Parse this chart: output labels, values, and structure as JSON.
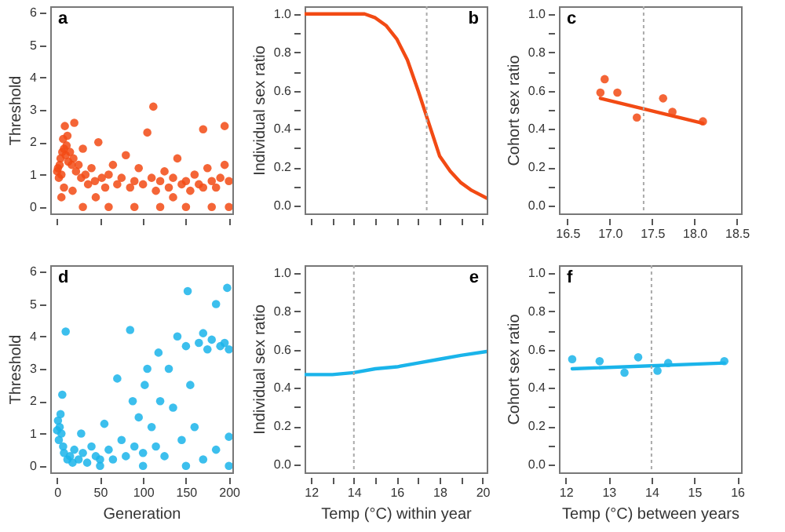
{
  "chart_data": [
    {
      "type": "scatter",
      "annotations": [
        "a"
      ],
      "ylabel": "Threshold",
      "xlim": [
        -8,
        204
      ],
      "ylim": [
        -0.2,
        6.2
      ],
      "xticks": [
        0,
        50,
        100,
        150,
        200
      ],
      "yticks": [
        0,
        1,
        2,
        3,
        4,
        5,
        6
      ],
      "tick_labels": "y",
      "marker": "circle",
      "series": [
        {
          "color": "#f24a14",
          "x": [
            0,
            1,
            2,
            3,
            4,
            5,
            6,
            7,
            8,
            9,
            10,
            11,
            12,
            13,
            15,
            17,
            19,
            20,
            22,
            25,
            28,
            30,
            33,
            36,
            40,
            44,
            48,
            52,
            56,
            60,
            65,
            70,
            75,
            80,
            85,
            90,
            95,
            100,
            105,
            110,
            115,
            120,
            125,
            130,
            135,
            140,
            145,
            150,
            155,
            160,
            165,
            170,
            175,
            180,
            185,
            190,
            195,
            200,
            112,
            170,
            195,
            30,
            60,
            90,
            120,
            150,
            180,
            200,
            45,
            135,
            5,
            8,
            18
          ],
          "values": [
            1.1,
            1.2,
            0.9,
            1.3,
            1.5,
            1.0,
            1.7,
            2.1,
            1.8,
            2.5,
            1.6,
            1.9,
            2.2,
            1.4,
            1.7,
            1.3,
            1.5,
            2.6,
            1.1,
            1.3,
            0.9,
            1.8,
            1.0,
            0.7,
            1.2,
            0.8,
            2.0,
            0.9,
            0.6,
            1.0,
            1.3,
            0.7,
            0.9,
            1.6,
            0.6,
            0.8,
            1.2,
            0.7,
            2.3,
            0.9,
            0.5,
            0.8,
            1.1,
            0.6,
            0.9,
            1.5,
            0.7,
            0.8,
            0.5,
            1.0,
            0.7,
            0.6,
            1.2,
            0.8,
            0.6,
            0.9,
            1.3,
            0.8,
            3.1,
            2.4,
            2.5,
            0,
            0,
            0,
            0,
            0,
            0,
            0,
            0.3,
            0.3,
            0.3,
            0.6,
            0.5
          ]
        }
      ]
    },
    {
      "type": "line",
      "annotations": [
        "b"
      ],
      "ylabel": "Individual sex ratio",
      "xlim": [
        11.7,
        20.2
      ],
      "ylim": [
        -0.04,
        1.04
      ],
      "xticks": [
        12,
        13,
        14,
        15,
        16,
        17,
        18,
        19,
        20
      ],
      "yticks": [
        {
          "value": 0,
          "label": "0.0"
        },
        {
          "value": 0.1,
          "label": null
        },
        {
          "value": 0.2,
          "label": "0.2"
        },
        {
          "value": 0.3,
          "label": null
        },
        {
          "value": 0.4,
          "label": "0.4"
        },
        {
          "value": 0.5,
          "label": null
        },
        {
          "value": 0.6,
          "label": "0.6"
        },
        {
          "value": 0.7,
          "label": null
        },
        {
          "value": 0.8,
          "label": "0.8"
        },
        {
          "value": 0.9,
          "label": null
        },
        {
          "value": 1,
          "label": "1.0"
        }
      ],
      "tick_labels": "y",
      "ref_lines": [
        {
          "axis": "x",
          "value": 17.4,
          "line_style": "dotted"
        }
      ],
      "series": [
        {
          "color": "#f24a14",
          "x": [
            11.7,
            14,
            14.5,
            15,
            15.5,
            16,
            16.5,
            17,
            17.5,
            18,
            18.5,
            19,
            19.5,
            20.2
          ],
          "values": [
            1.0,
            1.0,
            1.0,
            0.98,
            0.94,
            0.87,
            0.76,
            0.6,
            0.43,
            0.26,
            0.18,
            0.12,
            0.08,
            0.04
          ]
        }
      ]
    },
    {
      "type": "scatter",
      "annotations": [
        "c"
      ],
      "ylabel": "Cohort sex ratio",
      "xlim": [
        16.4,
        18.55
      ],
      "ylim": [
        -0.04,
        1.04
      ],
      "xticks": [
        {
          "value": 16.5,
          "label": "16.5"
        },
        {
          "value": 17,
          "label": "17.0"
        },
        {
          "value": 17.5,
          "label": "17.5"
        },
        {
          "value": 18,
          "label": "18.0"
        },
        {
          "value": 18.5,
          "label": "18.5"
        }
      ],
      "yticks": [
        {
          "value": 0,
          "label": "0.0"
        },
        {
          "value": 0.1,
          "label": null
        },
        {
          "value": 0.2,
          "label": "0.2"
        },
        {
          "value": 0.3,
          "label": null
        },
        {
          "value": 0.4,
          "label": "0.4"
        },
        {
          "value": 0.5,
          "label": null
        },
        {
          "value": 0.6,
          "label": "0.6"
        },
        {
          "value": 0.7,
          "label": null
        },
        {
          "value": 0.8,
          "label": "0.8"
        },
        {
          "value": 0.9,
          "label": null
        },
        {
          "value": 1,
          "label": "1.0"
        }
      ],
      "ref_lines": [
        {
          "axis": "x",
          "value": 17.4,
          "line_style": "dotted"
        }
      ],
      "series": [
        {
          "marker": "circle",
          "color": "#f24a14",
          "x": [
            16.89,
            16.94,
            17.09,
            17.32,
            17.63,
            17.74,
            18.1
          ],
          "values": [
            0.59,
            0.66,
            0.59,
            0.46,
            0.56,
            0.49,
            0.44
          ]
        },
        {
          "type": "line",
          "color": "#f24a14",
          "x": [
            16.89,
            18.1
          ],
          "values": [
            0.56,
            0.43
          ]
        }
      ]
    },
    {
      "type": "scatter",
      "annotations": [
        "d"
      ],
      "xlabel": "Generation",
      "ylabel": "Threshold",
      "xlim": [
        -8,
        204
      ],
      "ylim": [
        -0.2,
        6.2
      ],
      "xticks": [
        0,
        50,
        100,
        150,
        200
      ],
      "yticks": [
        0,
        1,
        2,
        3,
        4,
        5,
        6
      ],
      "marker": "circle",
      "series": [
        {
          "color": "#1ab4ea",
          "x": [
            0,
            1,
            2,
            3,
            4,
            5,
            6,
            7,
            8,
            10,
            12,
            15,
            18,
            20,
            25,
            28,
            30,
            35,
            40,
            45,
            50,
            55,
            60,
            65,
            70,
            75,
            80,
            85,
            88,
            90,
            95,
            100,
            102,
            105,
            110,
            115,
            118,
            120,
            125,
            130,
            135,
            140,
            145,
            150,
            152,
            155,
            160,
            165,
            170,
            175,
            180,
            185,
            190,
            195,
            198,
            200,
            200,
            185,
            170,
            150,
            100,
            50,
            200
          ],
          "values": [
            1.1,
            1.4,
            0.8,
            1.2,
            1.6,
            1.0,
            2.2,
            0.6,
            0.4,
            4.15,
            0.2,
            0.3,
            0.1,
            0.5,
            0.2,
            1.0,
            0.4,
            0.1,
            0.6,
            0.3,
            0.2,
            1.3,
            0.5,
            0.2,
            2.7,
            0.8,
            0.3,
            4.2,
            2.0,
            0.6,
            1.5,
            0.4,
            2.5,
            3.0,
            1.2,
            0.6,
            3.5,
            2.0,
            0.3,
            3.0,
            1.8,
            4.0,
            0.8,
            3.7,
            5.4,
            2.5,
            1.2,
            3.8,
            4.1,
            3.6,
            3.9,
            5.0,
            3.7,
            3.8,
            5.5,
            3.6,
            0.9,
            0.5,
            0.2,
            0,
            0,
            0,
            0
          ]
        }
      ]
    },
    {
      "type": "line",
      "annotations": [
        "e"
      ],
      "xlabel": "Temp (°C) within year",
      "ylabel": "Individual sex ratio",
      "xlim": [
        11.7,
        20.2
      ],
      "ylim": [
        -0.04,
        1.04
      ],
      "xticks": [
        12,
        {
          "value": 13,
          "label": null
        },
        14,
        {
          "value": 15,
          "label": null
        },
        16,
        {
          "value": 17,
          "label": null
        },
        18,
        {
          "value": 19,
          "label": null
        },
        20
      ],
      "yticks": [
        {
          "value": 0,
          "label": "0.0"
        },
        {
          "value": 0.1,
          "label": null
        },
        {
          "value": 0.2,
          "label": "0.2"
        },
        {
          "value": 0.3,
          "label": null
        },
        {
          "value": 0.4,
          "label": "0.4"
        },
        {
          "value": 0.5,
          "label": null
        },
        {
          "value": 0.6,
          "label": "0.6"
        },
        {
          "value": 0.7,
          "label": null
        },
        {
          "value": 0.8,
          "label": "0.8"
        },
        {
          "value": 0.9,
          "label": null
        },
        {
          "value": 1,
          "label": "1.0"
        }
      ],
      "ref_lines": [
        {
          "axis": "x",
          "value": 14,
          "line_style": "dotted"
        }
      ],
      "series": [
        {
          "color": "#1ab4ea",
          "x": [
            11.7,
            13,
            14,
            15,
            16,
            17,
            18,
            19,
            20.2
          ],
          "values": [
            0.47,
            0.47,
            0.48,
            0.5,
            0.51,
            0.53,
            0.55,
            0.57,
            0.59
          ]
        }
      ]
    },
    {
      "type": "scatter",
      "annotations": [
        "f"
      ],
      "xlabel": "Temp (°C) between years",
      "ylabel": "Cohort sex ratio",
      "xlim": [
        11.84,
        16.09
      ],
      "ylim": [
        -0.04,
        1.04
      ],
      "xticks": [
        12,
        13,
        14,
        15,
        16
      ],
      "yticks": [
        {
          "value": 0,
          "label": "0.0"
        },
        {
          "value": 0.1,
          "label": null
        },
        {
          "value": 0.2,
          "label": "0.2"
        },
        {
          "value": 0.3,
          "label": null
        },
        {
          "value": 0.4,
          "label": "0.4"
        },
        {
          "value": 0.5,
          "label": null
        },
        {
          "value": 0.6,
          "label": "0.6"
        },
        {
          "value": 0.7,
          "label": null
        },
        {
          "value": 0.8,
          "label": "0.8"
        },
        {
          "value": 0.9,
          "label": null
        },
        {
          "value": 1,
          "label": "1.0"
        }
      ],
      "ref_lines": [
        {
          "axis": "x",
          "value": 14,
          "line_style": "dotted"
        }
      ],
      "series": [
        {
          "marker": "circle",
          "color": "#1ab4ea",
          "x": [
            12.15,
            12.79,
            13.37,
            13.69,
            14.14,
            14.39,
            15.7
          ],
          "values": [
            0.55,
            0.54,
            0.48,
            0.56,
            0.49,
            0.53,
            0.54
          ]
        },
        {
          "type": "line",
          "color": "#1ab4ea",
          "x": [
            12.15,
            15.7
          ],
          "values": [
            0.5,
            0.53
          ]
        }
      ]
    }
  ]
}
